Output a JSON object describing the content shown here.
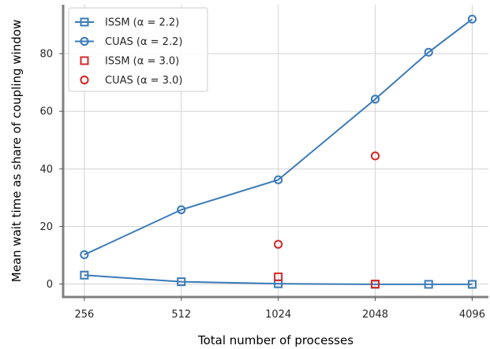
{
  "chart_data": {
    "type": "line",
    "x_scale": "log2",
    "x_ticks": [
      256,
      512,
      1024,
      2048,
      4096
    ],
    "x_tick_labels": [
      "256",
      "512",
      "1024",
      "2048",
      "4096"
    ],
    "xlabel": "Total number of processes",
    "ylabel": "Mean wait time as share of coupling window",
    "y_ticks": [
      0,
      20,
      40,
      60,
      80
    ],
    "y_tick_labels": [
      "0",
      "20",
      "40",
      "60",
      "80"
    ],
    "xlim": [
      220,
      4600
    ],
    "ylim": [
      -4.5,
      97
    ],
    "grid": true,
    "legend_position": "top-left",
    "series": [
      {
        "name": "ISSM (α = 2.2)",
        "style": "line",
        "marker": "square",
        "color": "#3a7ab8",
        "x": [
          256,
          512,
          1024,
          2048,
          3000,
          4096
        ],
        "y": [
          3.1,
          0.8,
          0.1,
          -0.1,
          -0.1,
          -0.1
        ]
      },
      {
        "name": "CUAS (α = 2.2)",
        "style": "line",
        "marker": "circle",
        "color": "#3a7ab8",
        "x": [
          256,
          512,
          1024,
          2048,
          3000,
          4096
        ],
        "y": [
          10.2,
          25.8,
          36.2,
          64.2,
          80.5,
          92.0
        ]
      },
      {
        "name": "ISSM (α = 3.0)",
        "style": "markers",
        "marker": "square",
        "color": "#d62728",
        "x": [
          1024,
          2048
        ],
        "y": [
          2.5,
          0.0
        ]
      },
      {
        "name": "CUAS (α = 3.0)",
        "style": "markers",
        "marker": "circle",
        "color": "#d62728",
        "x": [
          1024,
          2048
        ],
        "y": [
          13.8,
          44.5
        ]
      }
    ]
  }
}
